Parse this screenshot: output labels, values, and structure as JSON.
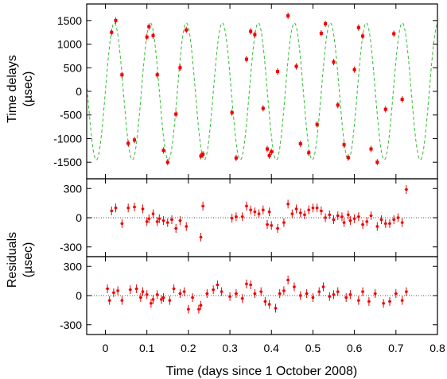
{
  "chart_data": [
    {
      "type": "scatter",
      "panel": "time-delays",
      "ylabel_line1": "Time delays",
      "ylabel_line2": "(µsec)",
      "ylim": [
        -1850,
        1850
      ],
      "yticks": [
        -1500,
        -1000,
        -500,
        0,
        500,
        1000,
        1500
      ],
      "grid": false,
      "series": [
        {
          "kind": "points",
          "x": [
            0.015,
            0.025,
            0.04,
            0.055,
            0.07,
            0.1,
            0.105,
            0.115,
            0.125,
            0.14,
            0.15,
            0.17,
            0.18,
            0.195,
            0.23,
            0.235,
            0.305,
            0.315,
            0.34,
            0.35,
            0.36,
            0.38,
            0.39,
            0.395,
            0.4,
            0.415,
            0.44,
            0.46,
            0.47,
            0.49,
            0.51,
            0.52,
            0.53,
            0.55,
            0.56,
            0.575,
            0.585,
            0.6,
            0.61,
            0.62,
            0.64,
            0.655,
            0.675,
            0.695,
            0.715
          ],
          "y": [
            1250,
            1500,
            350,
            -1100,
            -1030,
            1150,
            1370,
            1180,
            350,
            -1250,
            -1500,
            -480,
            500,
            1300,
            -1370,
            -1330,
            -450,
            -1410,
            680,
            1270,
            1200,
            -360,
            -1220,
            -1360,
            -1280,
            420,
            1600,
            530,
            -1110,
            -1300,
            -700,
            1230,
            1430,
            620,
            -290,
            -1130,
            -1400,
            460,
            1350,
            1170,
            -1220,
            -1500,
            -380,
            1220,
            -170
          ]
        },
        {
          "kind": "model-curve",
          "amplitude": 1450,
          "period": 0.0867,
          "phase": 0.0
        }
      ]
    },
    {
      "type": "scatter",
      "panel": "residuals-1",
      "ylim": [
        -400,
        400
      ],
      "yticks": [
        -300,
        0,
        300
      ],
      "zero_line": true,
      "x": [
        0.015,
        0.025,
        0.04,
        0.055,
        0.07,
        0.1,
        0.105,
        0.115,
        0.125,
        0.14,
        0.15,
        0.17,
        0.18,
        0.195,
        0.23,
        0.235,
        0.305,
        0.315,
        0.34,
        0.35,
        0.36,
        0.38,
        0.39,
        0.395,
        0.4,
        0.415,
        0.44,
        0.46,
        0.47,
        0.49,
        0.51,
        0.52,
        0.53,
        0.55,
        0.56,
        0.575,
        0.585,
        0.6,
        0.61,
        0.62,
        0.64,
        0.655,
        0.675,
        0.695,
        0.715,
        0.725,
        0.48,
        0.5,
        0.54,
        0.57,
        0.59,
        0.63,
        0.665,
        0.685,
        0.705,
        0.09,
        0.13,
        0.16,
        0.33,
        0.37,
        0.43,
        0.45
      ],
      "y": [
        70,
        100,
        -60,
        100,
        110,
        -40,
        -10,
        40,
        -40,
        -30,
        -50,
        -110,
        -30,
        -90,
        -200,
        120,
        -5,
        10,
        120,
        80,
        60,
        80,
        -70,
        60,
        -80,
        -110,
        140,
        90,
        50,
        80,
        100,
        70,
        0,
        -20,
        20,
        -50,
        30,
        -10,
        10,
        -70,
        20,
        -90,
        -60,
        -20,
        -50,
        290,
        30,
        100,
        30,
        10,
        -30,
        -40,
        -20,
        -60,
        0,
        90,
        -10,
        -20,
        10,
        40,
        -50,
        40
      ],
      "yerr": 45
    },
    {
      "type": "scatter",
      "panel": "residuals-2",
      "ylabel_line1": "Residuals",
      "ylabel_line2": "(µsec)",
      "ylim": [
        -400,
        400
      ],
      "yticks": [
        -300,
        0,
        300
      ],
      "zero_line": true,
      "x": [
        0.005,
        0.01,
        0.02,
        0.03,
        0.04,
        0.06,
        0.075,
        0.085,
        0.09,
        0.1,
        0.11,
        0.115,
        0.125,
        0.135,
        0.14,
        0.155,
        0.165,
        0.18,
        0.19,
        0.2,
        0.21,
        0.225,
        0.23,
        0.245,
        0.27,
        0.28,
        0.3,
        0.315,
        0.34,
        0.35,
        0.36,
        0.375,
        0.385,
        0.395,
        0.41,
        0.42,
        0.44,
        0.455,
        0.47,
        0.485,
        0.5,
        0.515,
        0.525,
        0.54,
        0.56,
        0.58,
        0.59,
        0.61,
        0.62,
        0.635,
        0.65,
        0.67,
        0.685,
        0.7,
        0.715,
        0.725,
        0.26,
        0.33,
        0.43,
        0.55
      ],
      "y": [
        70,
        -50,
        30,
        50,
        -50,
        60,
        70,
        -20,
        40,
        10,
        -80,
        -40,
        10,
        -40,
        -20,
        -50,
        70,
        20,
        40,
        -140,
        -20,
        -140,
        -100,
        20,
        110,
        40,
        -10,
        20,
        120,
        110,
        20,
        40,
        -60,
        -90,
        -130,
        20,
        160,
        90,
        0,
        20,
        -20,
        40,
        90,
        -10,
        40,
        -20,
        10,
        -50,
        40,
        -60,
        20,
        -80,
        -60,
        20,
        -50,
        40,
        60,
        -30,
        50,
        10
      ],
      "yerr": 45
    }
  ],
  "xaxis": {
    "xlabel": "Time (days since 1 October 2008)",
    "xlim": [
      -0.045,
      0.8
    ],
    "xticks": [
      0,
      0.1,
      0.2,
      0.3,
      0.4,
      0.5,
      0.6,
      0.7,
      0.8
    ],
    "xtick_labels": [
      "0",
      "0.1",
      "0.2",
      "0.3",
      "0.4",
      "0.5",
      "0.6",
      "0.7",
      "0.8"
    ]
  },
  "colors": {
    "points": "#ee0000",
    "curve": "#33bb33",
    "zero_line": "#555555",
    "axes": "#000000"
  }
}
